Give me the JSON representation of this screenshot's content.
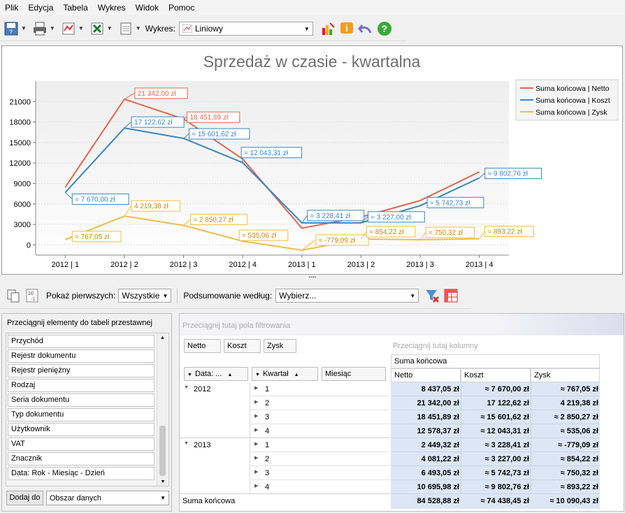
{
  "menu": [
    "Plik",
    "Edycja",
    "Tabela",
    "Wykres",
    "Widok",
    "Pomoc"
  ],
  "toolbar": {
    "chart_label": "Wykres:",
    "chart_type": "Liniowy"
  },
  "colors": {
    "netto": "#e0674e",
    "koszt": "#3b86c0",
    "zysk": "#efbe44"
  },
  "chart_data": {
    "type": "line",
    "title": "Sprzedaż w czasie - kwartalna",
    "categories": [
      "2012 | 1",
      "2012 | 2",
      "2012 | 3",
      "2012 | 4",
      "2013 | 1",
      "2013 | 2",
      "2013 | 3",
      "2013 | 4"
    ],
    "ylim": [
      -1500,
      24000
    ],
    "yticks": [
      "21000",
      "18000",
      "15000",
      "12000",
      "9000",
      "6000",
      "3000",
      "0"
    ],
    "series": [
      {
        "name": "Suma końcowa | Netto",
        "values": [
          8437.05,
          21342,
          18451.89,
          12578.37,
          2449.32,
          4081.22,
          6493.05,
          10695.98
        ],
        "labels": [
          "",
          "21 342,00 zł",
          "18 451,89 zł",
          "",
          "",
          "",
          "",
          ""
        ]
      },
      {
        "name": "Suma końcowa | Koszt",
        "values": [
          7670,
          17122.62,
          15601.62,
          12043.31,
          3228.41,
          3227,
          5742.73,
          9802.76
        ],
        "labels": [
          "≈ 7 670,00 zł",
          "17 122,62 zł",
          "≈ 15 601,62 zł",
          "≈ 12 043,31 zł",
          "≈ 3 228,41 zł",
          "≈ 3 227,00 zł",
          "≈ 5 742,73 zł",
          "≈ 9 802,76 zł"
        ]
      },
      {
        "name": "Suma końcowa | Zysk",
        "values": [
          767.05,
          4219.38,
          2850.27,
          535.06,
          -779.09,
          854.22,
          750.32,
          893.22
        ],
        "labels": [
          "≈ 767,05 zł",
          "4 219,38 zł",
          "≈ 2 850,27 zł",
          "≈ 535,06 zł",
          "≈ -779,09 zł",
          "≈ 854,22 zł",
          "≈ 750,32 zł",
          "≈ 893,22 zł"
        ]
      }
    ],
    "legend": "right"
  },
  "tb2": {
    "show_label": "Pokaż pierwszych:",
    "show_value": "Wszystkie",
    "summary_label": "Podsumowanie według:",
    "summary_value": "Wybierz..."
  },
  "fieldlist": {
    "title": "Przeciągnij elementy do tabeli przestawnej",
    "items": [
      "Przychód",
      "Rejestr dokumentu",
      "Rejestr pieniężny",
      "Rodzaj",
      "Seria dokumentu",
      "Typ dokumentu",
      "Użytkownik",
      "VAT",
      "Znacznik",
      "Data: Rok - Miesiąc - Dzień"
    ],
    "add_button": "Dodaj do",
    "target": "Obszar danych"
  },
  "pivot": {
    "filter_hint": "Przeciągnij tutaj pola filtrowania",
    "column_hint": "Przeciągnij tutaj kolumny",
    "data_fields": [
      "Netto",
      "Koszt",
      "Zysk"
    ],
    "row_fields": [
      "Data: ...",
      "Kwartał",
      "Miesiąc"
    ],
    "grand_header": "Suma końcowa",
    "col_headers": [
      "Netto",
      "Koszt",
      "Zysk"
    ],
    "years": [
      "2012",
      "2013"
    ],
    "rows": [
      {
        "q": "1",
        "netto": "8 437,05 zł",
        "koszt": "≈ 7 670,00 zł",
        "zysk": "≈ 767,05 zł"
      },
      {
        "q": "2",
        "netto": "21 342,00 zł",
        "koszt": "17 122,62 zł",
        "zysk": "4 219,38 zł"
      },
      {
        "q": "3",
        "netto": "18 451,89 zł",
        "koszt": "≈ 15 601,62 zł",
        "zysk": "≈ 2 850,27 zł"
      },
      {
        "q": "4",
        "netto": "12 578,37 zł",
        "koszt": "≈ 12 043,31 zł",
        "zysk": "≈ 535,06 zł"
      },
      {
        "q": "1",
        "netto": "2 449,32 zł",
        "koszt": "≈ 3 228,41 zł",
        "zysk": "≈ -779,09 zł"
      },
      {
        "q": "2",
        "netto": "4 081,22 zł",
        "koszt": "≈ 3 227,00 zł",
        "zysk": "≈ 854,22 zł"
      },
      {
        "q": "3",
        "netto": "6 493,05 zł",
        "koszt": "≈ 5 742,73 zł",
        "zysk": "≈ 750,32 zł"
      },
      {
        "q": "4",
        "netto": "10 695,98 zł",
        "koszt": "≈ 9 802,76 zł",
        "zysk": "≈ 893,22 zł"
      }
    ],
    "total_label": "Suma końcowa",
    "total": {
      "netto": "84 528,88 zł",
      "koszt": "≈ 74 438,45 zł",
      "zysk": "≈ 10 090,43 zł"
    }
  }
}
